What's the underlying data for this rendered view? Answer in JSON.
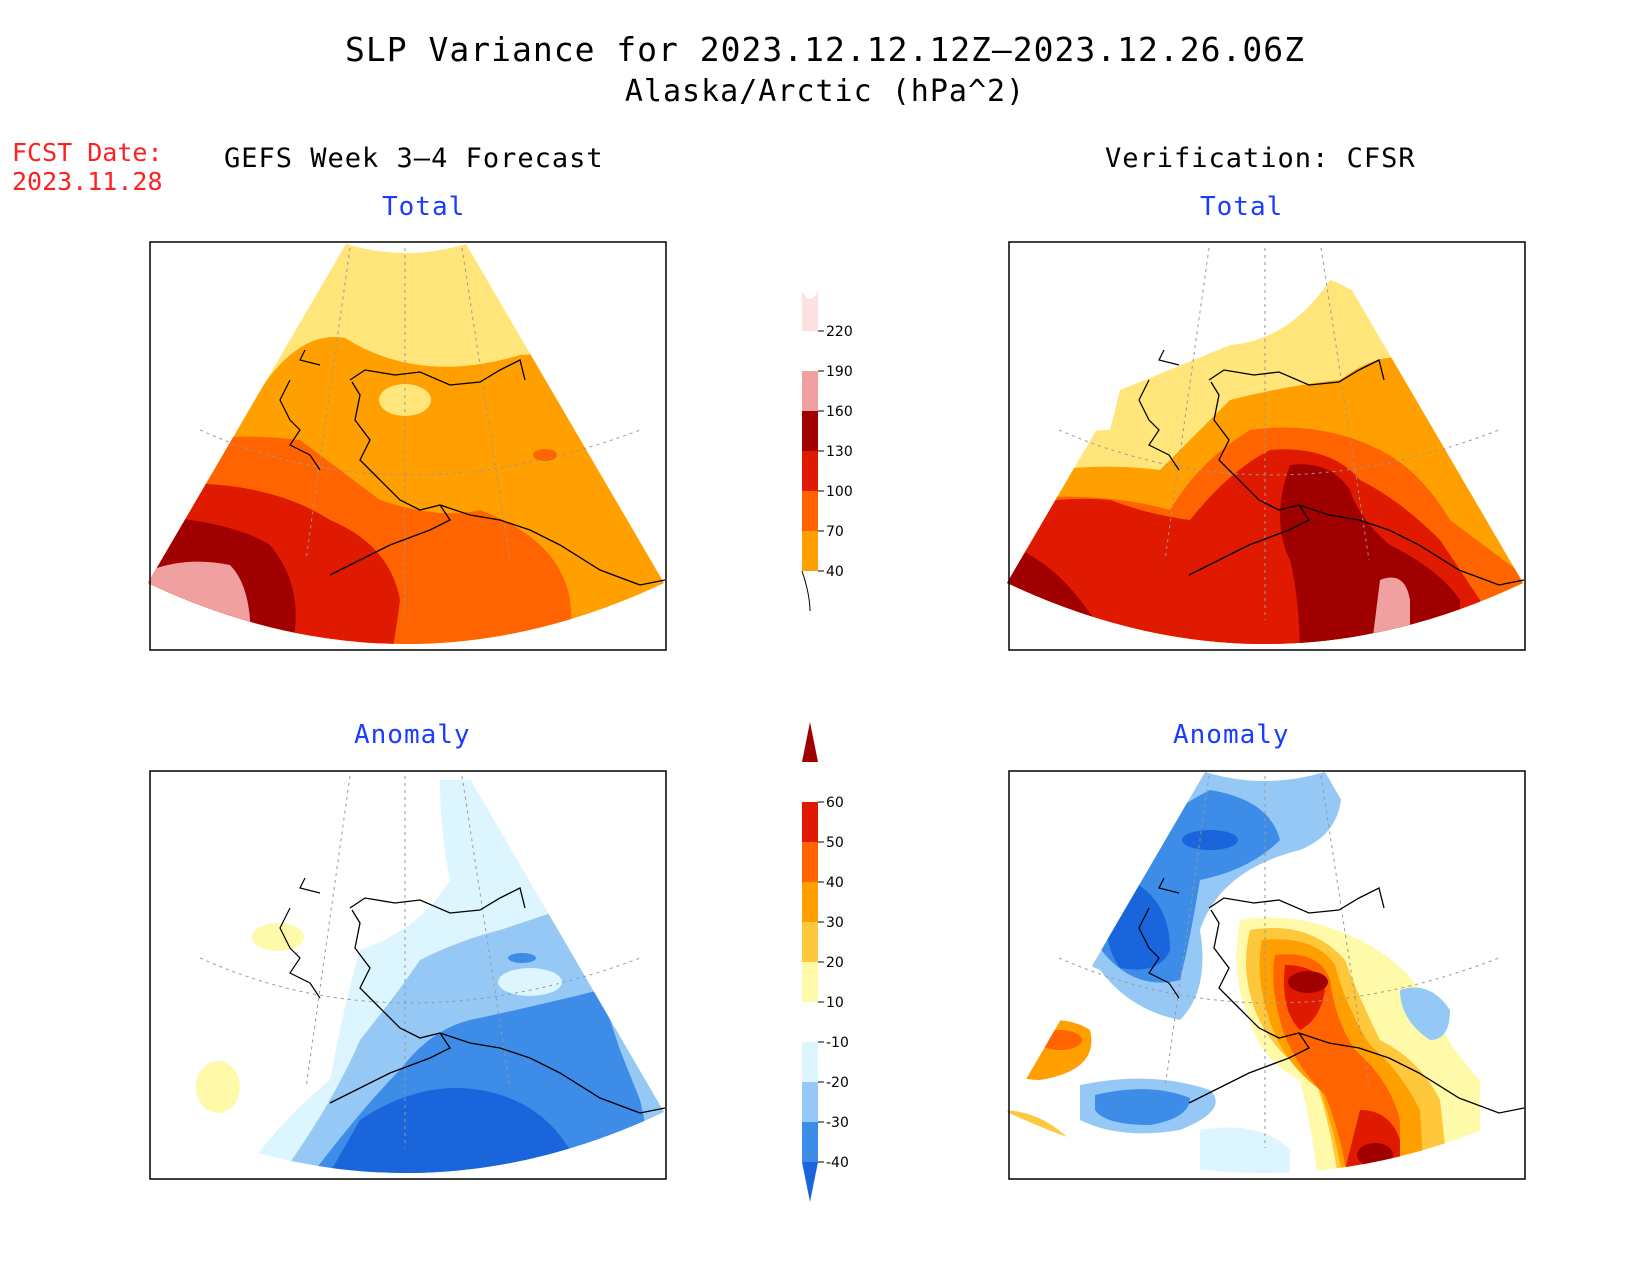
{
  "header": {
    "title": "SLP Variance for 2023.12.12.12Z–2023.12.26.06Z",
    "subtitle": "Alaska/Arctic (hPa^2)"
  },
  "forecast_date": {
    "label": "FCST Date:",
    "value": "2023.11.28"
  },
  "columns": {
    "left": "GEFS Week 3–4 Forecast",
    "right": "Verification: CFSR"
  },
  "panels": {
    "top_left": "Total",
    "top_right": "Total",
    "bottom_left": "Anomaly",
    "bottom_right": "Anomaly"
  },
  "colorbars": {
    "total": {
      "labels": [
        "40",
        "70",
        "100",
        "130",
        "160",
        "190",
        "220"
      ],
      "colors": [
        "#ffe57a",
        "#ffa000",
        "#ff6400",
        "#e01a00",
        "#a00000",
        "#f0a0a0",
        "#fde0e0"
      ]
    },
    "anomaly": {
      "labels": [
        "-40",
        "-30",
        "-20",
        "-10",
        "10",
        "20",
        "30",
        "40",
        "50",
        "60"
      ],
      "colors": [
        "#1a64dc",
        "#3c8ce8",
        "#96c8f5",
        "#dcf5ff",
        "#ffffff",
        "#fffaaa",
        "#ffc83c",
        "#ffa000",
        "#ff6400",
        "#e01a00",
        "#a00000"
      ]
    }
  }
}
